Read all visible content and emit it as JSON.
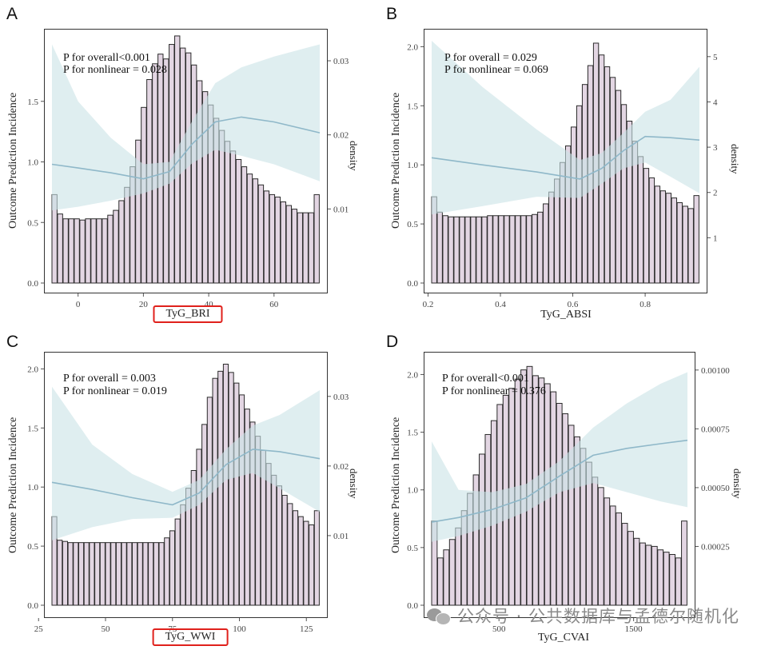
{
  "colors": {
    "bar_fill": "#e3d6e3",
    "bar_stroke": "#2b2b2b",
    "ribbon": "#c9e3e6",
    "line": "#8fb8c9",
    "highlight_box": "#e0211c"
  },
  "watermark": {
    "icon": "wechat-icon",
    "text": "公众号 · 公共数据库与孟德尔随机化"
  },
  "chart_data": [
    {
      "panel_label": "A",
      "type": "bar",
      "overlay": "restricted-cubic-spline line with confidence band",
      "xlabel": "TyG_BRI",
      "xlabel_highlighted": true,
      "ylabel": "Outcome Prediction Incidence",
      "y2label": "density",
      "p_overall": "P for overall<0.001",
      "p_nonlinear": "P for nonlinear = 0.028",
      "xlim": [
        -8,
        74
      ],
      "ylim": [
        0,
        2.0
      ],
      "y2lim": [
        0,
        0.0327
      ],
      "xticks": [
        0,
        20,
        40,
        60
      ],
      "xtick_labels": [
        "0",
        "20",
        "40",
        "60"
      ],
      "yticks": [
        0.0,
        0.5,
        1.0,
        1.5
      ],
      "ytick_labels": [
        "0.0",
        "0.5",
        "1.0",
        "1.5"
      ],
      "y2ticks": [
        0.01,
        0.02,
        0.03
      ],
      "y2tick_labels": [
        "0.01",
        "0.02",
        "0.03"
      ],
      "hist_x_range": [
        -8,
        74
      ],
      "hist_heights": [
        0.73,
        0.57,
        0.53,
        0.53,
        0.53,
        0.52,
        0.53,
        0.53,
        0.53,
        0.53,
        0.56,
        0.6,
        0.68,
        0.79,
        0.96,
        1.18,
        1.45,
        1.68,
        1.81,
        1.89,
        1.85,
        1.97,
        2.04,
        1.94,
        1.9,
        1.8,
        1.67,
        1.58,
        1.47,
        1.36,
        1.26,
        1.17,
        1.09,
        1.02,
        0.96,
        0.9,
        0.86,
        0.81,
        0.76,
        0.73,
        0.71,
        0.67,
        0.64,
        0.61,
        0.58,
        0.58,
        0.58,
        0.73
      ],
      "curve_x": [
        -8,
        0,
        10,
        20,
        28,
        35,
        42,
        50,
        60,
        74
      ],
      "curve_y": [
        0.98,
        0.95,
        0.91,
        0.86,
        0.92,
        1.15,
        1.33,
        1.37,
        1.33,
        1.24
      ],
      "ci_lower": [
        0.6,
        0.63,
        0.68,
        0.74,
        0.82,
        0.99,
        1.1,
        1.05,
        0.98,
        0.84
      ],
      "ci_upper": [
        1.97,
        1.5,
        1.2,
        0.98,
        1.0,
        1.34,
        1.65,
        1.78,
        1.87,
        1.97
      ]
    },
    {
      "panel_label": "B",
      "type": "bar",
      "overlay": "restricted-cubic-spline line with confidence band",
      "xlabel": "TyG_ABSI",
      "xlabel_highlighted": false,
      "ylabel": "Outcome Prediction Incidence",
      "y2label": "density",
      "p_overall": "P for overall = 0.029",
      "p_nonlinear": "P for nonlinear = 0.069",
      "xlim": [
        0.21,
        0.95
      ],
      "ylim": [
        0,
        2.05
      ],
      "y2lim": [
        0,
        5.35
      ],
      "xticks": [
        0.2,
        0.4,
        0.6,
        0.8
      ],
      "xtick_labels": [
        "0.2",
        "0.4",
        "0.6",
        "0.8"
      ],
      "yticks": [
        0.0,
        0.5,
        1.0,
        1.5,
        2.0
      ],
      "ytick_labels": [
        "0.0",
        "0.5",
        "1.0",
        "1.5",
        "2.0"
      ],
      "y2ticks": [
        1,
        2,
        3,
        4,
        5
      ],
      "y2tick_labels": [
        "1",
        "2",
        "3",
        "4",
        "5"
      ],
      "hist_x_range": [
        0.21,
        0.95
      ],
      "hist_heights": [
        0.73,
        0.6,
        0.57,
        0.56,
        0.56,
        0.56,
        0.56,
        0.56,
        0.56,
        0.56,
        0.57,
        0.57,
        0.57,
        0.57,
        0.57,
        0.57,
        0.57,
        0.57,
        0.58,
        0.6,
        0.67,
        0.77,
        0.88,
        1.02,
        1.16,
        1.32,
        1.5,
        1.68,
        1.84,
        2.03,
        1.93,
        1.83,
        1.74,
        1.63,
        1.51,
        1.37,
        1.2,
        1.07,
        0.97,
        0.89,
        0.82,
        0.78,
        0.76,
        0.72,
        0.68,
        0.65,
        0.63,
        0.74
      ],
      "curve_x": [
        0.21,
        0.35,
        0.5,
        0.62,
        0.68,
        0.74,
        0.8,
        0.87,
        0.95
      ],
      "curve_y": [
        1.06,
        1.0,
        0.94,
        0.88,
        0.97,
        1.12,
        1.24,
        1.23,
        1.21
      ],
      "ci_lower": [
        0.58,
        0.65,
        0.73,
        0.72,
        0.84,
        0.97,
        1.02,
        0.9,
        0.76
      ],
      "ci_upper": [
        2.05,
        1.66,
        1.3,
        1.04,
        1.1,
        1.27,
        1.45,
        1.55,
        1.83
      ]
    },
    {
      "panel_label": "C",
      "type": "bar",
      "overlay": "restricted-cubic-spline line with confidence band",
      "xlabel": "TyG_WWI",
      "xlabel_highlighted": true,
      "ylabel": "Outcome Prediction Incidence",
      "y2label": "density",
      "p_overall": "P for overall = 0.003",
      "p_nonlinear": "P for nonlinear = 0.019",
      "xlim": [
        30,
        130
      ],
      "ylim": [
        0,
        2.05
      ],
      "y2lim": [
        0,
        0.0348
      ],
      "xticks": [
        25,
        50,
        75,
        100,
        125
      ],
      "xtick_labels": [
        "25",
        "50",
        "75",
        "100",
        "125"
      ],
      "yticks": [
        0.0,
        0.5,
        1.0,
        1.5,
        2.0
      ],
      "ytick_labels": [
        "0.0",
        "0.5",
        "1.0",
        "1.5",
        "2.0"
      ],
      "y2ticks": [
        0.01,
        0.02,
        0.03
      ],
      "y2tick_labels": [
        "0.01",
        "0.02",
        "0.03"
      ],
      "hist_x_range": [
        30,
        130
      ],
      "hist_heights": [
        0.75,
        0.55,
        0.54,
        0.53,
        0.53,
        0.53,
        0.53,
        0.53,
        0.53,
        0.53,
        0.53,
        0.53,
        0.53,
        0.53,
        0.53,
        0.53,
        0.53,
        0.53,
        0.53,
        0.53,
        0.53,
        0.57,
        0.63,
        0.73,
        0.85,
        0.99,
        1.14,
        1.32,
        1.53,
        1.76,
        1.92,
        1.98,
        2.04,
        1.97,
        1.88,
        1.78,
        1.66,
        1.55,
        1.43,
        1.31,
        1.2,
        1.1,
        1.01,
        0.93,
        0.86,
        0.8,
        0.75,
        0.71,
        0.68,
        0.8
      ],
      "curve_x": [
        30,
        45,
        60,
        75,
        85,
        95,
        105,
        115,
        130
      ],
      "curve_y": [
        1.04,
        0.98,
        0.91,
        0.85,
        0.95,
        1.19,
        1.32,
        1.3,
        1.24
      ],
      "ci_lower": [
        0.55,
        0.66,
        0.73,
        0.74,
        0.85,
        1.06,
        1.12,
        0.99,
        0.79
      ],
      "ci_upper": [
        1.85,
        1.36,
        1.11,
        0.96,
        1.06,
        1.32,
        1.52,
        1.61,
        1.82
      ]
    },
    {
      "panel_label": "D",
      "type": "bar",
      "overlay": "restricted-cubic-spline line with confidence band",
      "xlabel": "TyG_CVAI",
      "xlabel_highlighted": false,
      "ylabel": "Outcome Prediction Incidence",
      "y2label": "density",
      "p_overall": "P for overall<0.001",
      "p_nonlinear": "P for nonlinear = 0.376",
      "xlim": [
        0,
        1900
      ],
      "ylim": [
        0,
        2.1
      ],
      "y2lim": [
        0,
        0.00103
      ],
      "xticks": [
        500,
        1500
      ],
      "xtick_labels": [
        "500",
        "1500"
      ],
      "yticks": [
        0.0,
        0.5,
        1.0,
        1.5,
        2.0
      ],
      "ytick_labels": [
        "0.0",
        "0.5",
        "1.0",
        "1.5",
        "2.0"
      ],
      "y2ticks": [
        0.00025,
        0.0005,
        0.00075,
        0.001
      ],
      "y2tick_labels": [
        "0.00025",
        "0.00050",
        "0.00075",
        "0.00100"
      ],
      "hist_x_range": [
        0,
        1900
      ],
      "hist_heights": [
        0.73,
        0.41,
        0.48,
        0.57,
        0.67,
        0.82,
        0.97,
        1.13,
        1.31,
        1.48,
        1.6,
        1.74,
        1.82,
        1.88,
        1.96,
        2.04,
        2.07,
        1.99,
        1.97,
        1.92,
        1.85,
        1.75,
        1.66,
        1.56,
        1.46,
        1.36,
        1.24,
        1.11,
        1.02,
        0.93,
        0.86,
        0.8,
        0.71,
        0.64,
        0.58,
        0.54,
        0.52,
        0.51,
        0.48,
        0.46,
        0.44,
        0.41,
        0.73
      ],
      "curve_x": [
        0,
        200,
        450,
        700,
        950,
        1200,
        1450,
        1700,
        1900
      ],
      "curve_y": [
        0.72,
        0.76,
        0.83,
        0.93,
        1.12,
        1.3,
        1.36,
        1.4,
        1.43
      ],
      "ci_lower": [
        0.55,
        0.6,
        0.69,
        0.81,
        0.98,
        1.06,
        0.98,
        0.9,
        0.85
      ],
      "ci_upper": [
        1.42,
        1.0,
        0.98,
        1.05,
        1.25,
        1.54,
        1.75,
        1.92,
        2.02
      ]
    }
  ]
}
